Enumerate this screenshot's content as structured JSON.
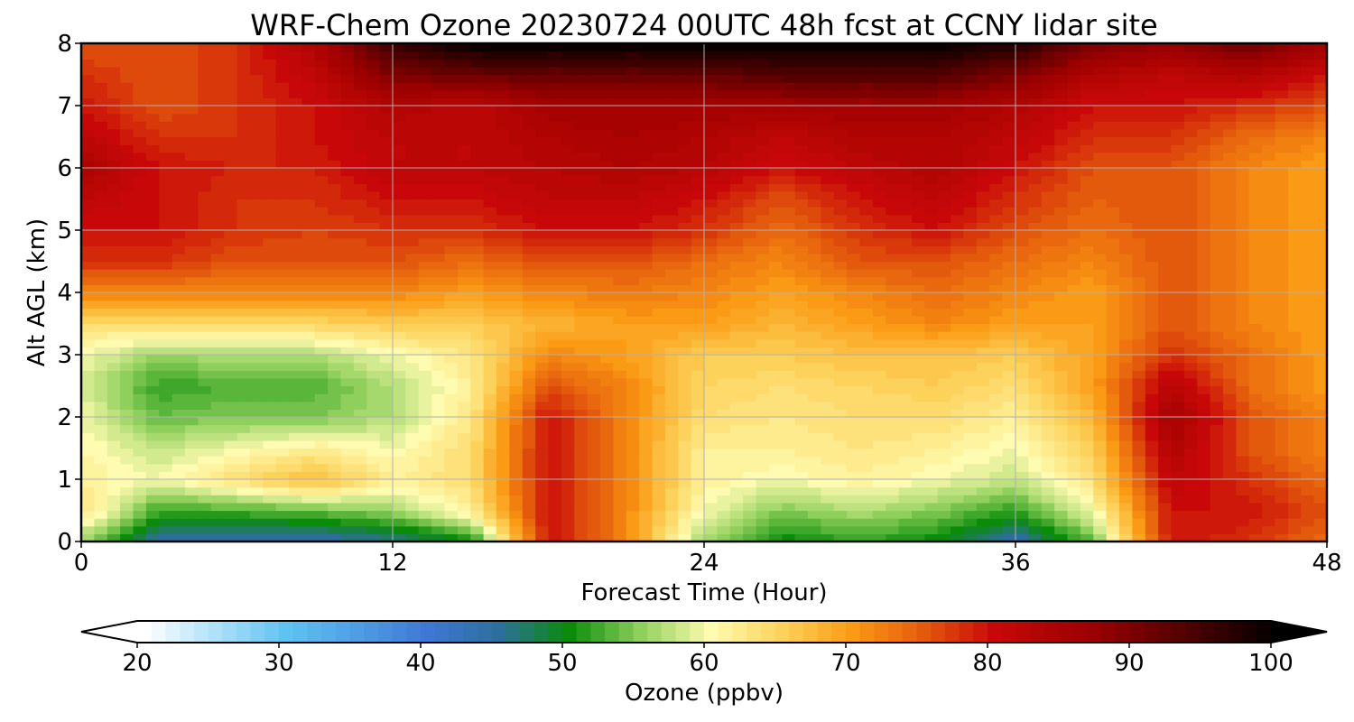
{
  "chart_data": {
    "type": "heatmap",
    "title": "WRF-Chem Ozone  20230724 00UTC 48h fcst at CCNY lidar site",
    "xlabel": "Forecast Time (Hour)",
    "ylabel": "Alt AGL (km)",
    "xlim": [
      0,
      48
    ],
    "ylim": [
      0,
      8
    ],
    "xticks": [
      "0",
      "12",
      "24",
      "36",
      "48"
    ],
    "yticks": [
      "0",
      "1",
      "2",
      "3",
      "4",
      "5",
      "6",
      "7",
      "8"
    ],
    "grid": true,
    "x": [
      0,
      3,
      6,
      9,
      12,
      15,
      18,
      21,
      24,
      27,
      30,
      33,
      36,
      39,
      42,
      45,
      48
    ],
    "y": [
      0,
      0.5,
      1,
      1.5,
      2,
      2.5,
      3,
      3.5,
      4,
      4.5,
      5,
      5.5,
      6,
      6.5,
      7,
      7.5,
      8
    ],
    "z": [
      [
        56,
        44,
        44,
        44,
        46,
        50,
        80,
        72,
        56,
        50,
        52,
        50,
        44,
        54,
        80,
        78,
        74
      ],
      [
        64,
        52,
        53,
        54,
        56,
        62,
        80,
        72,
        60,
        55,
        57,
        55,
        52,
        60,
        80,
        80,
        76
      ],
      [
        62,
        60,
        64,
        68,
        62,
        64,
        80,
        72,
        62,
        60,
        62,
        60,
        58,
        64,
        82,
        78,
        74
      ],
      [
        61,
        58,
        60,
        62,
        60,
        64,
        80,
        72,
        62,
        62,
        63,
        62,
        60,
        66,
        84,
        76,
        72
      ],
      [
        60,
        54,
        55,
        55,
        57,
        63,
        80,
        72,
        64,
        63,
        64,
        64,
        62,
        68,
        86,
        76,
        72
      ],
      [
        59,
        52,
        53,
        53,
        57,
        62,
        76,
        72,
        65,
        64,
        65,
        66,
        64,
        70,
        83,
        74,
        70
      ],
      [
        60,
        56,
        57,
        57,
        60,
        63,
        72,
        70,
        66,
        66,
        67,
        67,
        66,
        70,
        78,
        74,
        70
      ],
      [
        64,
        64,
        64,
        65,
        66,
        66,
        68,
        70,
        70,
        68,
        70,
        72,
        70,
        70,
        76,
        72,
        70
      ],
      [
        72,
        72,
        72,
        72,
        72,
        70,
        72,
        73,
        72,
        70,
        72,
        74,
        72,
        70,
        76,
        72,
        70
      ],
      [
        78,
        78,
        76,
        76,
        76,
        74,
        76,
        76,
        74,
        72,
        76,
        76,
        74,
        72,
        76,
        72,
        70
      ],
      [
        80,
        80,
        78,
        77,
        78,
        78,
        80,
        80,
        78,
        74,
        78,
        80,
        76,
        74,
        76,
        72,
        70
      ],
      [
        82,
        80,
        78,
        78,
        80,
        80,
        82,
        82,
        80,
        76,
        80,
        82,
        78,
        75,
        76,
        72,
        70
      ],
      [
        85,
        80,
        79,
        79,
        82,
        82,
        83,
        84,
        83,
        80,
        82,
        84,
        80,
        76,
        76,
        72,
        70
      ],
      [
        82,
        78,
        78,
        80,
        82,
        82,
        84,
        85,
        84,
        82,
        84,
        84,
        82,
        78,
        78,
        74,
        72
      ],
      [
        80,
        76,
        78,
        80,
        84,
        82,
        86,
        86,
        86,
        86,
        86,
        86,
        84,
        80,
        80,
        78,
        76
      ],
      [
        78,
        76,
        78,
        82,
        90,
        92,
        92,
        92,
        92,
        94,
        94,
        94,
        90,
        84,
        82,
        84,
        80
      ],
      [
        76,
        76,
        78,
        84,
        96,
        100,
        100,
        100,
        100,
        100,
        100,
        100,
        98,
        90,
        88,
        92,
        86
      ]
    ],
    "colorbar": {
      "label": "Ozone  (ppbv)",
      "range": [
        20,
        100
      ],
      "ticks": [
        "20",
        "30",
        "40",
        "50",
        "60",
        "70",
        "80",
        "90",
        "100"
      ],
      "extend": "both",
      "colors": {
        "20": "#ffffff",
        "30": "#5fc3f2",
        "40": "#3f78d4",
        "45": "#2d6f9c",
        "50": "#0a8c0a",
        "55": "#8fd05c",
        "60": "#fffbb0",
        "65": "#fcd25a",
        "70": "#fb9a14",
        "75": "#e45a0c",
        "80": "#c80808",
        "87": "#9a0000",
        "93": "#560000",
        "100": "#000000"
      }
    }
  }
}
